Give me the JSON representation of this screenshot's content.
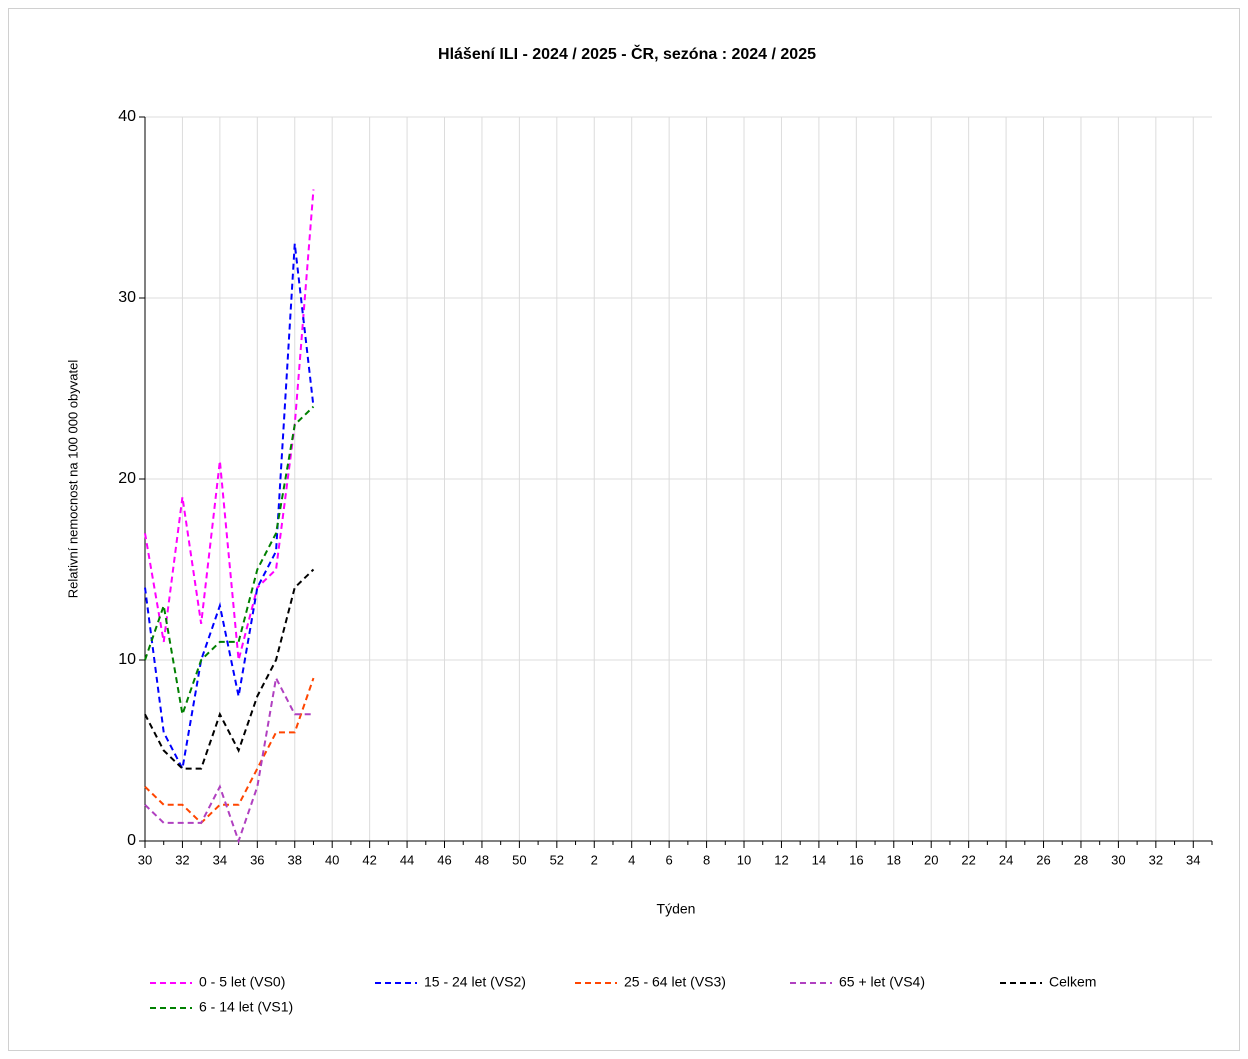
{
  "chart_data": {
    "type": "line",
    "title": "Hlášení ILI - 2024 / 2025 - ČR, sezóna : 2024 / 2025",
    "x_label": "Týden",
    "y_label": "Relativní nemocnost na 100 000 obyvatel",
    "categories": [
      "30",
      null,
      "32",
      null,
      "34",
      null,
      "36",
      null,
      "38",
      null,
      "40",
      null,
      "42",
      null,
      "44",
      null,
      "46",
      null,
      "48",
      null,
      "50",
      null,
      "52",
      null,
      "2",
      null,
      "4",
      null,
      "6",
      null,
      "8",
      null,
      "10",
      null,
      "12",
      null,
      "14",
      null,
      "16",
      null,
      "18",
      null,
      "20",
      null,
      "22",
      null,
      "24",
      null,
      "26",
      null,
      "28",
      null,
      "30",
      null,
      "32",
      null,
      "34",
      null
    ],
    "ylim": [
      0,
      40
    ],
    "yticks": [
      0,
      10,
      20,
      30,
      40
    ],
    "grid": true,
    "series": [
      {
        "name": "0 - 5 let (VS0)",
        "color": "#ff00ff",
        "values": [
          17,
          11,
          19,
          12,
          21,
          10,
          14,
          15,
          23,
          36,
          null,
          null,
          null,
          null,
          null,
          null,
          null,
          null,
          null,
          null,
          null,
          null,
          null,
          null,
          null,
          null,
          null,
          null,
          null,
          null,
          null,
          null,
          null,
          null,
          null,
          null,
          null,
          null,
          null,
          null,
          null,
          null,
          null,
          null,
          null,
          null,
          null,
          null,
          null,
          null,
          null,
          null,
          null,
          null,
          null,
          null,
          null,
          null
        ]
      },
      {
        "name": "15 - 24 let (VS2)",
        "color": "#0000ff",
        "values": [
          14,
          6,
          4,
          10,
          13,
          8,
          14,
          16,
          33,
          24,
          null,
          null,
          null,
          null,
          null,
          null,
          null,
          null,
          null,
          null,
          null,
          null,
          null,
          null,
          null,
          null,
          null,
          null,
          null,
          null,
          null,
          null,
          null,
          null,
          null,
          null,
          null,
          null,
          null,
          null,
          null,
          null,
          null,
          null,
          null,
          null,
          null,
          null,
          null,
          null,
          null,
          null,
          null,
          null,
          null,
          null,
          null,
          null
        ]
      },
      {
        "name": "25 - 64 let (VS3)",
        "color": "#ff4500",
        "values": [
          3,
          2,
          2,
          1,
          2,
          2,
          4,
          6,
          6,
          9,
          null,
          null,
          null,
          null,
          null,
          null,
          null,
          null,
          null,
          null,
          null,
          null,
          null,
          null,
          null,
          null,
          null,
          null,
          null,
          null,
          null,
          null,
          null,
          null,
          null,
          null,
          null,
          null,
          null,
          null,
          null,
          null,
          null,
          null,
          null,
          null,
          null,
          null,
          null,
          null,
          null,
          null,
          null,
          null,
          null,
          null,
          null,
          null
        ]
      },
      {
        "name": "65 + let (VS4)",
        "color": "#b040c0",
        "values": [
          2,
          1,
          1,
          1,
          3,
          0,
          3,
          9,
          7,
          7,
          null,
          null,
          null,
          null,
          null,
          null,
          null,
          null,
          null,
          null,
          null,
          null,
          null,
          null,
          null,
          null,
          null,
          null,
          null,
          null,
          null,
          null,
          null,
          null,
          null,
          null,
          null,
          null,
          null,
          null,
          null,
          null,
          null,
          null,
          null,
          null,
          null,
          null,
          null,
          null,
          null,
          null,
          null,
          null,
          null,
          null,
          null,
          null
        ]
      },
      {
        "name": "Celkem",
        "color": "#000000",
        "values": [
          7,
          5,
          4,
          4,
          7,
          5,
          8,
          10,
          14,
          15,
          null,
          null,
          null,
          null,
          null,
          null,
          null,
          null,
          null,
          null,
          null,
          null,
          null,
          null,
          null,
          null,
          null,
          null,
          null,
          null,
          null,
          null,
          null,
          null,
          null,
          null,
          null,
          null,
          null,
          null,
          null,
          null,
          null,
          null,
          null,
          null,
          null,
          null,
          null,
          null,
          null,
          null,
          null,
          null,
          null,
          null,
          null,
          null
        ]
      },
      {
        "name": "6 - 14 let (VS1)",
        "color": "#008000",
        "values": [
          10,
          13,
          7,
          10,
          11,
          11,
          15,
          17,
          23,
          24,
          null,
          null,
          null,
          null,
          null,
          null,
          null,
          null,
          null,
          null,
          null,
          null,
          null,
          null,
          null,
          null,
          null,
          null,
          null,
          null,
          null,
          null,
          null,
          null,
          null,
          null,
          null,
          null,
          null,
          null,
          null,
          null,
          null,
          null,
          null,
          null,
          null,
          null,
          null,
          null,
          null,
          null,
          null,
          null,
          null,
          null,
          null,
          null
        ]
      }
    ]
  }
}
